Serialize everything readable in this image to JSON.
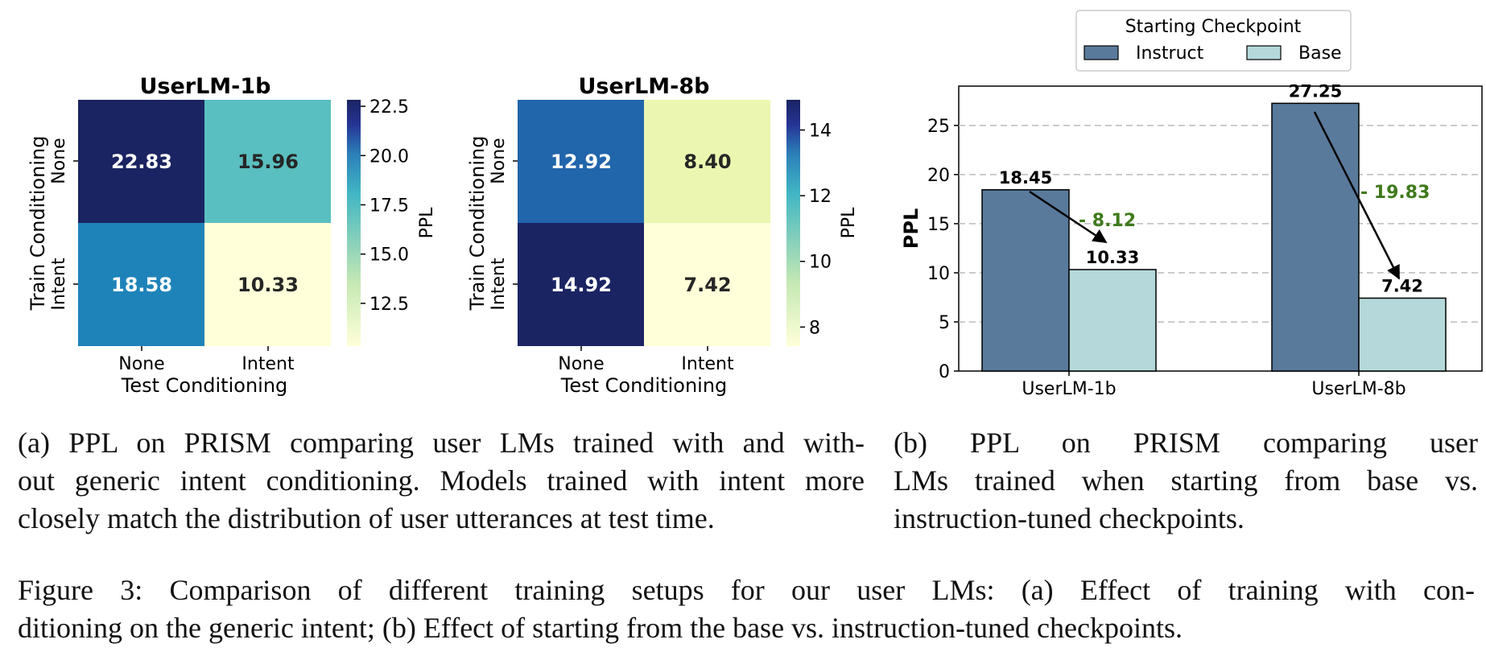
{
  "chart_data": [
    {
      "type": "heatmap",
      "title": "UserLM-1b",
      "xlabel": "Test Conditioning",
      "ylabel": "Train Conditioning",
      "x_categories": [
        "None",
        "Intent"
      ],
      "y_categories": [
        "None",
        "Intent"
      ],
      "values": [
        [
          22.83,
          15.96
        ],
        [
          18.58,
          10.33
        ]
      ],
      "value_labels": [
        [
          "22.83",
          "15.96"
        ],
        [
          "18.58",
          "10.33"
        ]
      ],
      "colorbar": {
        "label": "PPL",
        "range": [
          10.33,
          22.83
        ],
        "ticks": [
          "12.5",
          "15.0",
          "17.5",
          "20.0",
          "22.5"
        ]
      }
    },
    {
      "type": "heatmap",
      "title": "UserLM-8b",
      "xlabel": "Test Conditioning",
      "ylabel": "Train Conditioning",
      "x_categories": [
        "None",
        "Intent"
      ],
      "y_categories": [
        "None",
        "Intent"
      ],
      "values": [
        [
          12.92,
          8.4
        ],
        [
          14.92,
          7.42
        ]
      ],
      "value_labels": [
        [
          "12.92",
          "8.40"
        ],
        [
          "14.92",
          "7.42"
        ]
      ],
      "colorbar": {
        "label": "PPL",
        "range": [
          7.42,
          14.92
        ],
        "ticks": [
          "8",
          "10",
          "12",
          "14"
        ]
      }
    },
    {
      "type": "bar",
      "categories": [
        "UserLM-1b",
        "UserLM-8b"
      ],
      "series": [
        {
          "name": "Instruct",
          "values": [
            18.45,
            27.25
          ],
          "labels": [
            "18.45",
            "27.25"
          ],
          "color": "#5a7a9c"
        },
        {
          "name": "Base",
          "values": [
            10.33,
            7.42
          ],
          "labels": [
            "10.33",
            "7.42"
          ],
          "color": "#b5d9da"
        }
      ],
      "ylabel": "PPL",
      "ylim": [
        0,
        29
      ],
      "yticks": [
        "0",
        "5",
        "10",
        "15",
        "20",
        "25"
      ],
      "legend_title": "Starting Checkpoint",
      "legend_position": "top",
      "grid": "horizontal dashed",
      "annotations": [
        "- 8.12",
        "- 19.83"
      ],
      "annotation_color": "#3f7a1c"
    }
  ],
  "captions": {
    "a": [
      "(a) PPL on PRISM comparing user LMs trained with and with-",
      "out generic intent conditioning. Models trained with intent more",
      "closely match the distribution of user utterances at test time."
    ],
    "b": [
      "(b) PPL on PRISM comparing user",
      "LMs trained when starting from base vs.",
      "instruction-tuned checkpoints."
    ],
    "figure": [
      "Figure 3: Comparison of different training setups for our user LMs: (a) Effect of training with con-",
      "ditioning on the generic intent; (b) Effect of starting from the base vs. instruction-tuned checkpoints."
    ]
  }
}
